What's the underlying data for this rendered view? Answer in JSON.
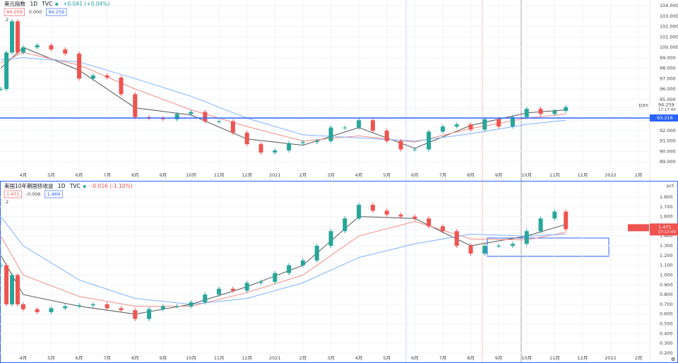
{
  "chart_data": [
    {
      "type": "candlestick",
      "header": {
        "title": "美元指数",
        "interval": "1D",
        "source": "TVC",
        "change": "+0.041 (+0.04%)",
        "values": [
          "94.259",
          "0.000",
          "94.259"
        ],
        "collapse": "2"
      },
      "x": [
        -0.8,
        -0.6,
        -0.4,
        -0.2,
        0,
        0.5,
        1,
        1.5,
        2,
        2.5,
        3,
        3.5,
        4,
        4.5,
        5,
        5.5,
        6,
        6.5,
        7,
        7.5,
        8,
        8.5,
        9,
        9.5,
        10,
        10.5,
        11,
        11.5,
        12,
        12.5,
        13,
        13.5,
        14,
        14.5,
        15,
        15.5,
        16,
        16.5,
        17,
        17.5,
        18,
        18.5,
        19,
        19.4
      ],
      "values": [
        96.0,
        99.5,
        102.5,
        99.5,
        100.0,
        100.2,
        99.8,
        99.4,
        97.0,
        97.3,
        97.1,
        95.5,
        93.3,
        93.2,
        93.1,
        93.6,
        93.8,
        92.9,
        92.9,
        91.8,
        90.7,
        89.9,
        90.1,
        90.8,
        90.9,
        91.0,
        92.3,
        92.3,
        93.0,
        92.0,
        91.0,
        90.2,
        90.2,
        91.9,
        92.4,
        92.6,
        92.1,
        93.1,
        92.4,
        93.3,
        94.1,
        93.6,
        93.9,
        94.259
      ],
      "up_color": "#26a69a",
      "down_color": "#ef5350",
      "ma": [
        {
          "color": "#555555",
          "x": [
            -0.8,
            0,
            2,
            4,
            6,
            8,
            10,
            12,
            14,
            16,
            18,
            19.4
          ],
          "values": [
            98,
            100,
            97.8,
            94.2,
            93.5,
            91.2,
            90.6,
            92.3,
            90.3,
            92.5,
            93.7,
            94.0
          ]
        },
        {
          "color": "#f28b82",
          "x": [
            -0.8,
            0,
            2,
            4,
            6,
            8,
            10,
            12,
            14,
            16,
            18,
            19.4
          ],
          "values": [
            98.5,
            99.5,
            98.3,
            96.0,
            94.0,
            92.4,
            91.0,
            91.5,
            90.9,
            92.2,
            93.2,
            93.6
          ]
        },
        {
          "color": "#7fb2ff",
          "x": [
            -0.8,
            0,
            2,
            4,
            6,
            8,
            10,
            12,
            14,
            16,
            18,
            19.4
          ],
          "values": [
            98.8,
            99.0,
            98.6,
            97.0,
            95.3,
            93.2,
            91.6,
            91.3,
            91.0,
            91.7,
            92.6,
            93.0
          ]
        }
      ],
      "hline": {
        "value": 93.216,
        "color": "#2962ff"
      },
      "last": {
        "symbol": "DXY",
        "value": 94.259,
        "time": "17:17:43",
        "color": "#ffffff"
      },
      "xlim": [
        -0.83,
        22.4
      ],
      "ylim": [
        88.2,
        104.55
      ],
      "yticks": [
        {
          "value": 104,
          "label": "104.000"
        },
        {
          "value": 103,
          "label": "103.000"
        },
        {
          "value": 102,
          "label": "102.000"
        },
        {
          "value": 101,
          "label": "101.000"
        },
        {
          "value": 100,
          "label": "100.000"
        },
        {
          "value": 99,
          "label": "99.000"
        },
        {
          "value": 98,
          "label": "98.000"
        },
        {
          "value": 97,
          "label": "97.000"
        },
        {
          "value": 96,
          "label": "96.000"
        },
        {
          "value": 95,
          "label": "95.000"
        },
        {
          "value": 94,
          "label": "94.000"
        },
        {
          "value": 93,
          "label": "93.000"
        },
        {
          "value": 92,
          "label": "92.000"
        },
        {
          "value": 91,
          "label": "91.000"
        },
        {
          "value": 90,
          "label": "90.000"
        },
        {
          "value": 89,
          "label": "89.000"
        }
      ],
      "xticks": [
        {
          "value": 0,
          "label": "4月"
        },
        {
          "value": 1,
          "label": "5月"
        },
        {
          "value": 2,
          "label": "6月"
        },
        {
          "value": 3,
          "label": "7月"
        },
        {
          "value": 4,
          "label": "8月"
        },
        {
          "value": 5,
          "label": "9月"
        },
        {
          "value": 6,
          "label": "10月"
        },
        {
          "value": 7,
          "label": "11月"
        },
        {
          "value": 8,
          "label": "12月"
        },
        {
          "value": 9,
          "label": "2021"
        },
        {
          "value": 10,
          "label": "2月"
        },
        {
          "value": 11,
          "label": "3月"
        },
        {
          "value": 12,
          "label": "4月"
        },
        {
          "value": 13,
          "label": "5月"
        },
        {
          "value": 14,
          "label": "6月"
        },
        {
          "value": 15,
          "label": "7月"
        },
        {
          "value": 16,
          "label": "8月"
        },
        {
          "value": 17,
          "label": "9月"
        },
        {
          "value": 18,
          "label": "10月"
        },
        {
          "value": 19,
          "label": "11月"
        },
        {
          "value": 20,
          "label": "12月"
        },
        {
          "value": 21,
          "label": "2022"
        },
        {
          "value": 22,
          "label": "2月"
        }
      ]
    },
    {
      "type": "candlestick",
      "header": {
        "title": "美国10年期国债收益",
        "interval": "1D",
        "source": "TVC",
        "change": "-0.016 (-1.10%)",
        "values": [
          "1.471",
          "-0.006",
          "1.469"
        ],
        "collapse": "2"
      },
      "unit": "pct",
      "x": [
        -0.8,
        -0.6,
        -0.4,
        -0.2,
        0,
        0.5,
        1,
        1.5,
        2,
        2.5,
        3,
        3.5,
        4,
        4.5,
        5,
        5.5,
        6,
        6.5,
        7,
        7.5,
        8,
        8.5,
        9,
        9.5,
        10,
        10.5,
        11,
        11.5,
        12,
        12.5,
        13,
        13.5,
        14,
        14.5,
        15,
        15.5,
        16,
        16.5,
        17,
        17.5,
        18,
        18.5,
        19,
        19.4
      ],
      "values": [
        1.1,
        0.7,
        1.0,
        0.7,
        0.65,
        0.62,
        0.66,
        0.68,
        0.69,
        0.7,
        0.66,
        0.64,
        0.55,
        0.65,
        0.68,
        0.68,
        0.72,
        0.8,
        0.86,
        0.84,
        0.92,
        0.93,
        1.02,
        1.1,
        1.15,
        1.3,
        1.45,
        1.58,
        1.72,
        1.66,
        1.62,
        1.6,
        1.58,
        1.5,
        1.45,
        1.3,
        1.22,
        1.3,
        1.3,
        1.32,
        1.45,
        1.58,
        1.65,
        1.471
      ],
      "up_color": "#26a69a",
      "down_color": "#ef5350",
      "ma": [
        {
          "color": "#555555",
          "x": [
            -0.8,
            0,
            2,
            4,
            6,
            8,
            10,
            12,
            14,
            16,
            18,
            19.4
          ],
          "values": [
            1.2,
            0.8,
            0.68,
            0.6,
            0.7,
            0.88,
            1.1,
            1.6,
            1.58,
            1.3,
            1.4,
            1.52
          ]
        },
        {
          "color": "#f28b82",
          "x": [
            -0.8,
            0,
            2,
            4,
            6,
            8,
            10,
            12,
            14,
            16,
            18,
            19.4
          ],
          "values": [
            1.4,
            1.0,
            0.78,
            0.68,
            0.68,
            0.82,
            1.0,
            1.4,
            1.55,
            1.37,
            1.36,
            1.44
          ]
        },
        {
          "color": "#7fb2ff",
          "x": [
            -0.8,
            0,
            2,
            4,
            6,
            8,
            10,
            12,
            14,
            16,
            18,
            19.4
          ],
          "values": [
            1.6,
            1.3,
            0.95,
            0.76,
            0.7,
            0.76,
            0.92,
            1.18,
            1.32,
            1.42,
            1.4,
            1.42
          ]
        }
      ],
      "last": {
        "symbol": "US10Y",
        "value": 1.471,
        "time": "17:17:43",
        "color": "#ef5350"
      },
      "xlim": [
        -0.83,
        22.4
      ],
      "ylim": [
        0.185,
        1.952
      ],
      "yticks": [
        {
          "value": 1.8,
          "label": "1.800"
        },
        {
          "value": 1.7,
          "label": "1.700"
        },
        {
          "value": 1.6,
          "label": "1.600"
        },
        {
          "value": 1.5,
          "label": "1.500"
        },
        {
          "value": 1.4,
          "label": "1.400"
        },
        {
          "value": 1.3,
          "label": "1.300"
        },
        {
          "value": 1.2,
          "label": "1.200"
        },
        {
          "value": 1.1,
          "label": "1.100"
        },
        {
          "value": 1.0,
          "label": "1.000"
        },
        {
          "value": 0.9,
          "label": "0.900"
        },
        {
          "value": 0.8,
          "label": "0.800"
        },
        {
          "value": 0.7,
          "label": "0.700"
        },
        {
          "value": 0.6,
          "label": "0.600"
        },
        {
          "value": 0.5,
          "label": "0.500"
        },
        {
          "value": 0.4,
          "label": "0.400"
        },
        {
          "value": 0.3,
          "label": "0.300"
        },
        {
          "value": 0.2,
          "label": "0.200"
        }
      ],
      "xticks": [
        {
          "value": 0,
          "label": "4月"
        },
        {
          "value": 1,
          "label": "5月"
        },
        {
          "value": 2,
          "label": "6月"
        },
        {
          "value": 3,
          "label": "7月"
        },
        {
          "value": 4,
          "label": "8月"
        },
        {
          "value": 5,
          "label": "9月"
        },
        {
          "value": 6,
          "label": "10月"
        },
        {
          "value": 7,
          "label": "11月"
        },
        {
          "value": 8,
          "label": "12月"
        },
        {
          "value": 9,
          "label": "2021"
        },
        {
          "value": 10,
          "label": "2月"
        },
        {
          "value": 11,
          "label": "3月"
        },
        {
          "value": 12,
          "label": "4月"
        },
        {
          "value": 13,
          "label": "5月"
        },
        {
          "value": 14,
          "label": "6月"
        },
        {
          "value": 15,
          "label": "7月"
        },
        {
          "value": 16,
          "label": "8月"
        },
        {
          "value": 17,
          "label": "9月"
        },
        {
          "value": 18,
          "label": "10月"
        },
        {
          "value": 19,
          "label": "11月"
        },
        {
          "value": 20,
          "label": "12月"
        },
        {
          "value": 21,
          "label": "2022"
        },
        {
          "value": 22,
          "label": "2月"
        }
      ]
    }
  ]
}
